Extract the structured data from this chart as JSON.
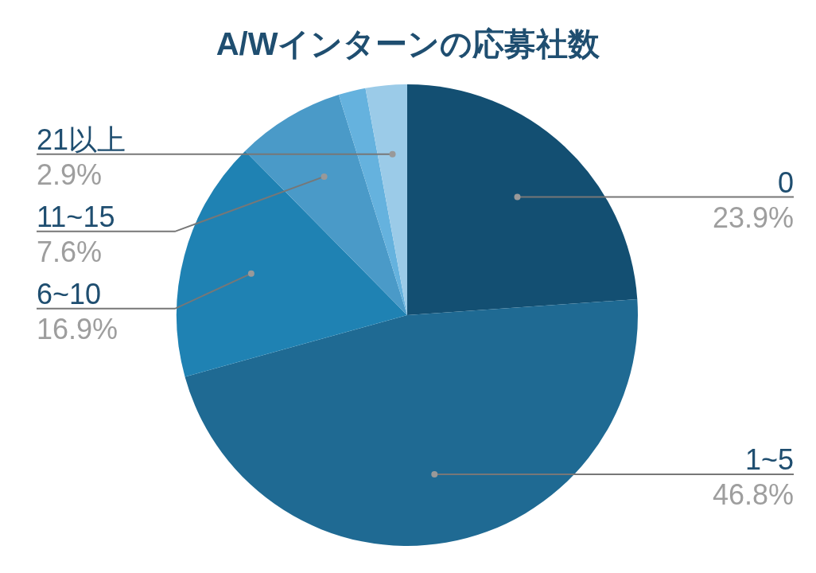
{
  "chart_data": {
    "type": "pie",
    "title": "A/Wインターンの応募社数",
    "categories": [
      "0",
      "1~5",
      "6~10",
      "11~15",
      null,
      "21以上"
    ],
    "values": [
      23.9,
      46.8,
      16.9,
      7.6,
      1.9,
      2.9
    ],
    "colors": [
      "#134f72",
      "#1f6a93",
      "#1f82b3",
      "#4a9ac8",
      "#65b2de",
      "#9bcbe8"
    ],
    "value_labels": [
      "23.9%",
      "46.8%",
      "16.9%",
      "7.6%",
      null,
      "2.9%"
    ],
    "legend": false
  }
}
